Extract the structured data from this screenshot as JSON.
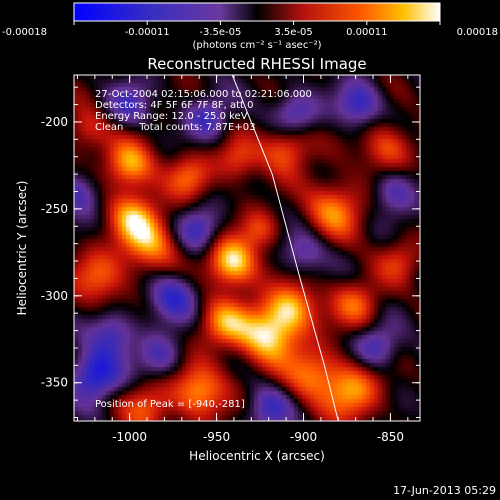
{
  "colorbar": {
    "ticks": [
      "-0.00018",
      "-0.00011",
      "-3.5e-05",
      "3.5e-05",
      "0.00011",
      "0.00018"
    ],
    "units": "(photons cm⁻² s⁻¹ asec⁻²)"
  },
  "plot": {
    "title": "Reconstructed RHESSI Image",
    "xlabel": "Heliocentric X (arcsec)",
    "ylabel": "Heliocentric Y (arcsec)",
    "xticks": [
      "-1000",
      "-950",
      "-900",
      "-850"
    ],
    "yticks": [
      "-200",
      "-250",
      "-300",
      "-350"
    ],
    "xlim": [
      -1032,
      -833
    ],
    "ylim": [
      -372,
      -173
    ]
  },
  "annotations": {
    "time_range": "27-Oct-2004 02:15:06.000 to 02:21:06.000",
    "detectors": "Detectors: 4F 5F 6F 7F 8F, att 0",
    "energy": "Energy Range: 12.0 - 25.0 keV",
    "clean": "Clean     Total counts: 7.87E+03",
    "peak": "Position of Peak = [-940,-281]"
  },
  "footer": {
    "timestamp": "17-Jun-2013 05:29"
  },
  "image_blobs": [
    {
      "x": -941,
      "y": -281,
      "amp": 1.0,
      "r": 10
    },
    {
      "x": -920,
      "y": -322,
      "amp": 0.95,
      "r": 12
    },
    {
      "x": -906,
      "y": -306,
      "amp": 0.7,
      "r": 10
    },
    {
      "x": -946,
      "y": -316,
      "amp": 0.65,
      "r": 10
    },
    {
      "x": -989,
      "y": -270,
      "amp": 0.7,
      "r": 12
    },
    {
      "x": -998,
      "y": -254,
      "amp": 0.6,
      "r": 10
    },
    {
      "x": -1000,
      "y": -225,
      "amp": 0.8,
      "r": 10
    },
    {
      "x": -966,
      "y": -232,
      "amp": 0.55,
      "r": 9
    },
    {
      "x": -938,
      "y": -222,
      "amp": 0.5,
      "r": 9
    },
    {
      "x": -910,
      "y": -215,
      "amp": 0.6,
      "r": 10
    },
    {
      "x": -882,
      "y": -250,
      "amp": 0.65,
      "r": 12
    },
    {
      "x": -870,
      "y": -305,
      "amp": 0.55,
      "r": 10
    },
    {
      "x": -872,
      "y": -355,
      "amp": 0.7,
      "r": 12
    },
    {
      "x": -895,
      "y": -345,
      "amp": 0.6,
      "r": 11
    },
    {
      "x": -960,
      "y": -355,
      "amp": 0.75,
      "r": 11
    },
    {
      "x": -990,
      "y": -365,
      "amp": 0.5,
      "r": 10
    },
    {
      "x": -1018,
      "y": -290,
      "amp": 0.55,
      "r": 11
    },
    {
      "x": -1025,
      "y": -205,
      "amp": 0.45,
      "r": 9
    },
    {
      "x": -852,
      "y": -215,
      "amp": 0.55,
      "r": 10
    },
    {
      "x": -925,
      "y": -262,
      "amp": 0.45,
      "r": 8
    },
    {
      "x": -845,
      "y": -280,
      "amp": 0.4,
      "r": 9
    },
    {
      "x": -1020,
      "y": -345,
      "amp": -0.8,
      "r": 10
    },
    {
      "x": -1010,
      "y": -322,
      "amp": -0.55,
      "r": 9
    },
    {
      "x": -975,
      "y": -300,
      "amp": -0.6,
      "r": 10
    },
    {
      "x": -960,
      "y": -262,
      "amp": -0.55,
      "r": 9
    },
    {
      "x": -955,
      "y": -198,
      "amp": -0.5,
      "r": 9
    },
    {
      "x": -905,
      "y": -195,
      "amp": -0.55,
      "r": 9
    },
    {
      "x": -868,
      "y": -190,
      "amp": -0.6,
      "r": 9
    },
    {
      "x": -848,
      "y": -240,
      "amp": -0.5,
      "r": 9
    },
    {
      "x": -900,
      "y": -275,
      "amp": -0.45,
      "r": 9
    },
    {
      "x": -858,
      "y": -330,
      "amp": -0.55,
      "r": 9
    },
    {
      "x": -920,
      "y": -365,
      "amp": -0.5,
      "r": 9
    },
    {
      "x": -1000,
      "y": -190,
      "amp": -0.45,
      "r": 9
    },
    {
      "x": -1030,
      "y": -240,
      "amp": -0.5,
      "r": 9
    },
    {
      "x": -982,
      "y": -335,
      "amp": -0.45,
      "r": 9
    }
  ],
  "limb_curve": [
    [
      -941,
      -173
    ],
    [
      -918,
      -230
    ],
    [
      -902,
      -290
    ],
    [
      -888,
      -340
    ],
    [
      -880,
      -372
    ]
  ],
  "colors": {
    "background": "#000000",
    "text": "#ffffff"
  }
}
